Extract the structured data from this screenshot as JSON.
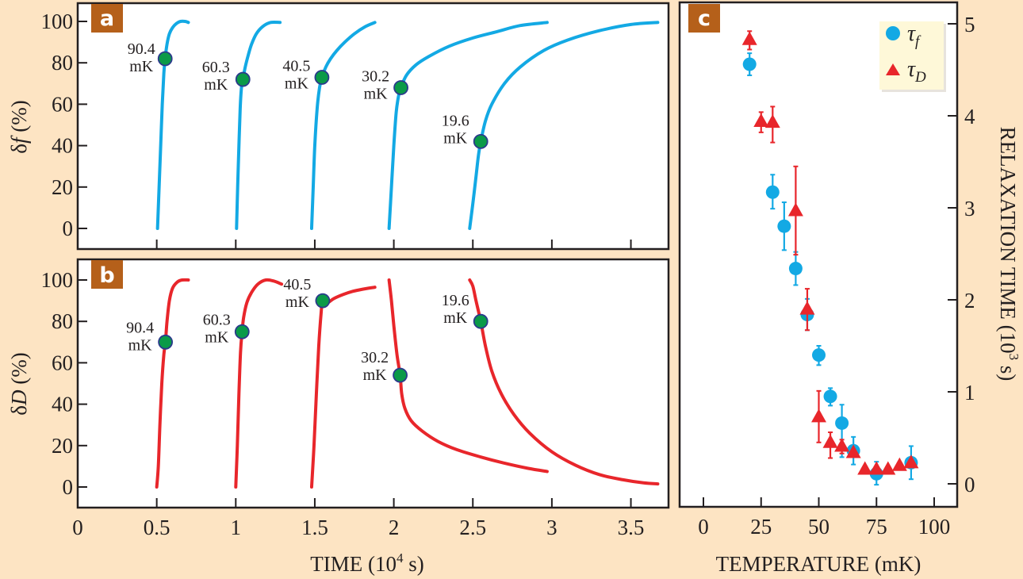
{
  "colors": {
    "background": "#fde4c3",
    "plot_bg": "#ffffff",
    "frame": "#231f20",
    "panel_label_bg": "#b5601a",
    "tau_f": "#13a9e4",
    "tau_D": "#e8262b",
    "marker_fill": "#0b9a48",
    "marker_edge": "#2b3a8c",
    "legend_bg": "#fef8d8"
  },
  "chart_data": [
    {
      "panel": "a",
      "type": "line",
      "panel_label": "a",
      "xlabel": "",
      "ylabel": "δf (%)",
      "ylabel_parts": [
        "δ",
        "f",
        " (%)"
      ],
      "xlim": [
        0,
        3.73
      ],
      "ylim": [
        -10,
        109
      ],
      "xticks": [
        0.5,
        1,
        1.5,
        2,
        2.5,
        3,
        3.5
      ],
      "yticks": [
        0,
        20,
        40,
        60,
        80,
        100
      ],
      "ytick_labels": [
        "0",
        "20",
        "40",
        "60",
        "80",
        "100"
      ],
      "series_color": "tau_f",
      "series": [
        {
          "name": "90.4 mK",
          "temp_label": [
            "90.4",
            "mK"
          ],
          "x": [
            0.505,
            0.515,
            0.525,
            0.535,
            0.545,
            0.553,
            0.565,
            0.58,
            0.6,
            0.625,
            0.65,
            0.68,
            0.7
          ],
          "y": [
            0,
            20,
            40,
            60,
            75,
            82,
            89,
            94,
            97,
            99,
            100,
            100,
            99.5
          ],
          "marker": {
            "x": 0.553,
            "y": 82
          }
        },
        {
          "name": "60.3 mK",
          "temp_label": [
            "60.3",
            "mK"
          ],
          "x": [
            1.005,
            1.012,
            1.02,
            1.028,
            1.036,
            1.045,
            1.06,
            1.08,
            1.1,
            1.13,
            1.17,
            1.22,
            1.28
          ],
          "y": [
            0,
            20,
            40,
            58,
            68,
            72,
            78,
            84,
            89,
            94,
            97.5,
            99.5,
            99.5
          ],
          "marker": {
            "x": 1.045,
            "y": 72
          }
        },
        {
          "name": "40.5 mK",
          "temp_label": [
            "40.5",
            "mK"
          ],
          "x": [
            1.48,
            1.49,
            1.5,
            1.515,
            1.53,
            1.545,
            1.57,
            1.6,
            1.64,
            1.69,
            1.75,
            1.82,
            1.88
          ],
          "y": [
            0,
            20,
            40,
            58,
            68,
            73,
            78,
            82,
            86,
            90,
            94,
            97.5,
            99.5
          ],
          "marker": {
            "x": 1.545,
            "y": 73
          }
        },
        {
          "name": "30.2 mK",
          "temp_label": [
            "30.2",
            "mK"
          ],
          "x": [
            1.97,
            1.985,
            2.0,
            2.015,
            2.03,
            2.045,
            2.08,
            2.14,
            2.22,
            2.35,
            2.5,
            2.65,
            2.8,
            2.97
          ],
          "y": [
            0,
            20,
            40,
            56,
            64,
            68,
            74,
            79,
            83,
            88,
            92,
            95,
            98,
            99.5
          ],
          "marker": {
            "x": 2.045,
            "y": 68
          }
        },
        {
          "name": "19.6 mK",
          "temp_label": [
            "19.6",
            "mK"
          ],
          "x": [
            2.48,
            2.5,
            2.52,
            2.535,
            2.55,
            2.58,
            2.62,
            2.7,
            2.8,
            2.95,
            3.1,
            3.3,
            3.5,
            3.67
          ],
          "y": [
            0,
            12,
            25,
            35,
            42,
            52,
            60,
            70,
            78,
            86,
            91,
            95.5,
            98.5,
            99.5
          ],
          "marker": {
            "x": 2.55,
            "y": 42
          }
        }
      ]
    },
    {
      "panel": "b",
      "type": "line",
      "panel_label": "b",
      "xlabel": "TIME (10⁴ s)",
      "xlabel_parts": [
        "TIME (10",
        "4",
        " s)"
      ],
      "ylabel": "δD (%)",
      "ylabel_parts": [
        "δ",
        "D",
        " (%)"
      ],
      "xlim": [
        0,
        3.73
      ],
      "ylim": [
        -10,
        110
      ],
      "xticks": [
        0,
        0.5,
        1,
        1.5,
        2,
        2.5,
        3,
        3.5
      ],
      "xtick_labels": [
        "0",
        "0.5",
        "1",
        "1.5",
        "2",
        "2.5",
        "3",
        "3.5"
      ],
      "yticks": [
        0,
        20,
        40,
        60,
        80,
        100
      ],
      "ytick_labels": [
        "0",
        "20",
        "40",
        "60",
        "80",
        "100"
      ],
      "series_color": "tau_D",
      "series": [
        {
          "name": "90.4 mK",
          "temp_label": [
            "90.4",
            "mK"
          ],
          "x": [
            0.5,
            0.51,
            0.52,
            0.532,
            0.545,
            0.555,
            0.565,
            0.58,
            0.6,
            0.63,
            0.66,
            0.7
          ],
          "y": [
            0,
            10,
            30,
            50,
            64,
            70,
            80,
            90,
            96,
            99,
            100,
            100
          ],
          "marker": {
            "x": 0.555,
            "y": 70
          }
        },
        {
          "name": "60.3 mK",
          "temp_label": [
            "60.3",
            "mK"
          ],
          "x": [
            1.0,
            1.01,
            1.02,
            1.03,
            1.04,
            1.05,
            1.07,
            1.1,
            1.14,
            1.19,
            1.24,
            1.29
          ],
          "y": [
            0,
            20,
            45,
            65,
            75,
            82,
            89,
            94,
            98,
            100,
            99.5,
            98
          ],
          "marker": {
            "x": 1.04,
            "y": 75
          }
        },
        {
          "name": "40.5 mK",
          "temp_label": [
            "40.5",
            "mK"
          ],
          "x": [
            1.48,
            1.495,
            1.51,
            1.525,
            1.54,
            1.55,
            1.58,
            1.62,
            1.68,
            1.74,
            1.8,
            1.88
          ],
          "y": [
            0,
            20,
            45,
            68,
            84,
            90,
            89,
            91,
            93,
            94.5,
            95.5,
            96.5
          ],
          "marker": {
            "x": 1.55,
            "y": 90
          }
        },
        {
          "name": "30.2 mK",
          "temp_label": [
            "30.2",
            "mK"
          ],
          "x": [
            1.97,
            1.985,
            2.0,
            2.02,
            2.04,
            2.05,
            2.07,
            2.11,
            2.18,
            2.28,
            2.4,
            2.55,
            2.7,
            2.85,
            2.97
          ],
          "y": [
            100,
            90,
            78,
            64,
            54,
            45,
            38,
            32,
            27,
            22,
            18,
            14.5,
            11.5,
            9,
            7.5
          ],
          "marker": {
            "x": 2.04,
            "y": 54
          }
        },
        {
          "name": "19.6 mK",
          "temp_label": [
            "19.6",
            "mK"
          ],
          "x": [
            2.48,
            2.5,
            2.52,
            2.55,
            2.58,
            2.62,
            2.68,
            2.76,
            2.86,
            3.0,
            3.15,
            3.3,
            3.45,
            3.58,
            3.67
          ],
          "y": [
            100,
            97,
            90,
            80,
            68,
            56,
            45,
            35,
            26,
            17,
            10.5,
            6,
            3.5,
            2,
            1.5
          ],
          "marker": {
            "x": 2.55,
            "y": 80
          }
        }
      ]
    },
    {
      "panel": "c",
      "type": "scatter",
      "panel_label": "c",
      "xlabel": "TEMPERATURE (mK)",
      "ylabel": "RELAXATION TIME (10³ s)",
      "ylabel_parts": [
        "RELAXATION TIME (10",
        "3",
        " s)"
      ],
      "xlim": [
        -9,
        110
      ],
      "ylim": [
        -0.25,
        5.17
      ],
      "xticks": [
        0,
        25,
        50,
        75,
        100
      ],
      "xtick_labels": [
        "0",
        "25",
        "50",
        "75",
        "100"
      ],
      "yticks": [
        0,
        1,
        2,
        3,
        4,
        5
      ],
      "ytick_labels": [
        "0",
        "1",
        "2",
        "3",
        "4",
        "5"
      ],
      "y_axis_side": "right",
      "legend": {
        "placement": "top-right",
        "entries": [
          {
            "symbol": "circle",
            "label": "τ",
            "subscript": "f",
            "series": "tau_f"
          },
          {
            "symbol": "triangle",
            "label": "τ",
            "subscript": "D",
            "series": "tau_D"
          }
        ]
      },
      "series": [
        {
          "name": "τ_f",
          "key": "tau_f",
          "marker": "circle",
          "points": [
            {
              "x": 20,
              "y": 4.56,
              "err_lo": 4.44,
              "err_hi": 4.68
            },
            {
              "x": 30,
              "y": 3.17,
              "err_lo": 2.99,
              "err_hi": 3.36
            },
            {
              "x": 35,
              "y": 2.8,
              "err_lo": 2.54,
              "err_hi": 3.06
            },
            {
              "x": 40,
              "y": 2.34,
              "err_lo": 2.16,
              "err_hi": 2.52
            },
            {
              "x": 45,
              "y": 1.84,
              "err_lo": 1.67,
              "err_hi": 2.01
            },
            {
              "x": 50,
              "y": 1.4,
              "err_lo": 1.29,
              "err_hi": 1.5
            },
            {
              "x": 55,
              "y": 0.95,
              "err_lo": 0.85,
              "err_hi": 1.04
            },
            {
              "x": 60,
              "y": 0.66,
              "err_lo": 0.29,
              "err_hi": 0.86
            },
            {
              "x": 65,
              "y": 0.36,
              "err_lo": 0.21,
              "err_hi": 0.51
            },
            {
              "x": 75,
              "y": 0.11,
              "err_lo": -0.01,
              "err_hi": 0.24
            },
            {
              "x": 90,
              "y": 0.23,
              "err_lo": 0.05,
              "err_hi": 0.41
            }
          ]
        },
        {
          "name": "τ_D",
          "key": "tau_D",
          "marker": "triangle",
          "points": [
            {
              "x": 20,
              "y": 4.83,
              "err_lo": 4.72,
              "err_hi": 4.92
            },
            {
              "x": 25,
              "y": 3.94,
              "err_lo": 3.82,
              "err_hi": 4.04
            },
            {
              "x": 30,
              "y": 3.93,
              "err_lo": 3.71,
              "err_hi": 4.1
            },
            {
              "x": 40,
              "y": 2.97,
              "err_lo": 2.49,
              "err_hi": 3.45
            },
            {
              "x": 45,
              "y": 1.9,
              "err_lo": 1.67,
              "err_hi": 2.12
            },
            {
              "x": 50,
              "y": 0.73,
              "err_lo": 0.45,
              "err_hi": 1.01
            },
            {
              "x": 55,
              "y": 0.45,
              "err_lo": 0.28,
              "err_hi": 0.56
            },
            {
              "x": 60,
              "y": 0.41,
              "err_lo": 0.33,
              "err_hi": 0.48
            },
            {
              "x": 65,
              "y": 0.34,
              "err_lo": 0.34,
              "err_hi": 0.34
            },
            {
              "x": 70,
              "y": 0.16,
              "err_lo": 0.16,
              "err_hi": 0.16
            },
            {
              "x": 75,
              "y": 0.16,
              "err_lo": 0.16,
              "err_hi": 0.16
            },
            {
              "x": 80,
              "y": 0.16,
              "err_lo": 0.16,
              "err_hi": 0.16
            },
            {
              "x": 85,
              "y": 0.2,
              "err_lo": 0.2,
              "err_hi": 0.2
            },
            {
              "x": 90,
              "y": 0.23,
              "err_lo": 0.23,
              "err_hi": 0.23
            }
          ]
        }
      ]
    }
  ]
}
